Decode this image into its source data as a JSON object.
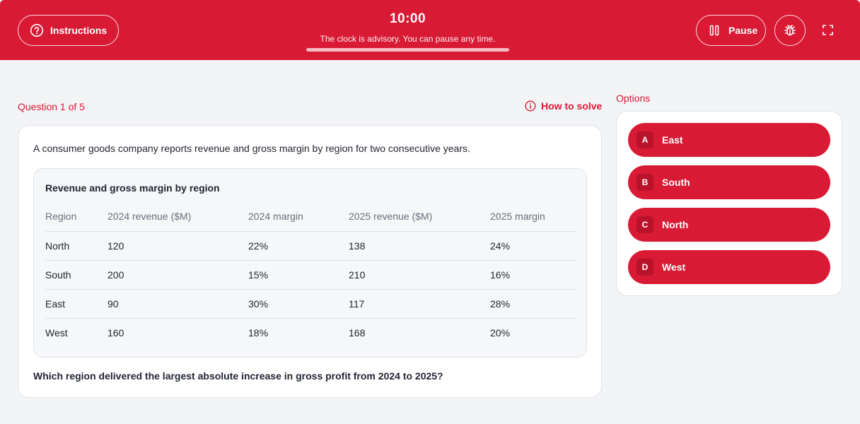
{
  "header": {
    "instructions_label": "Instructions",
    "timer": "10:00",
    "timer_note": "The clock is advisory. You can pause any time.",
    "timer_progress_percent": 100,
    "pause_label": "Pause",
    "icons": {
      "instructions": "question-circle-icon",
      "pause": "pause-icon",
      "bug": "bug-icon",
      "fullscreen": "fullscreen-icon"
    },
    "color": "#d91a35"
  },
  "question": {
    "counter": "Question 1 of 5",
    "how_to_solve": "How to solve",
    "intro": "A consumer goods company reports revenue and gross margin by region for two consecutive years.",
    "table": {
      "title": "Revenue and gross margin by region",
      "headers": [
        "Region",
        "2024 revenue ($M)",
        "2024 margin",
        "2025 revenue ($M)",
        "2025 margin"
      ],
      "rows": [
        [
          "North",
          "120",
          "22%",
          "138",
          "24%"
        ],
        [
          "South",
          "200",
          "15%",
          "210",
          "16%"
        ],
        [
          "East",
          "90",
          "30%",
          "117",
          "28%"
        ],
        [
          "West",
          "160",
          "18%",
          "168",
          "20%"
        ]
      ]
    },
    "prompt": "Which region delivered the largest absolute increase in gross profit from 2024 to 2025?"
  },
  "options": {
    "label": "Options",
    "items": [
      {
        "letter": "A",
        "text": "East"
      },
      {
        "letter": "B",
        "text": "South"
      },
      {
        "letter": "C",
        "text": "North"
      },
      {
        "letter": "D",
        "text": "West"
      }
    ]
  }
}
